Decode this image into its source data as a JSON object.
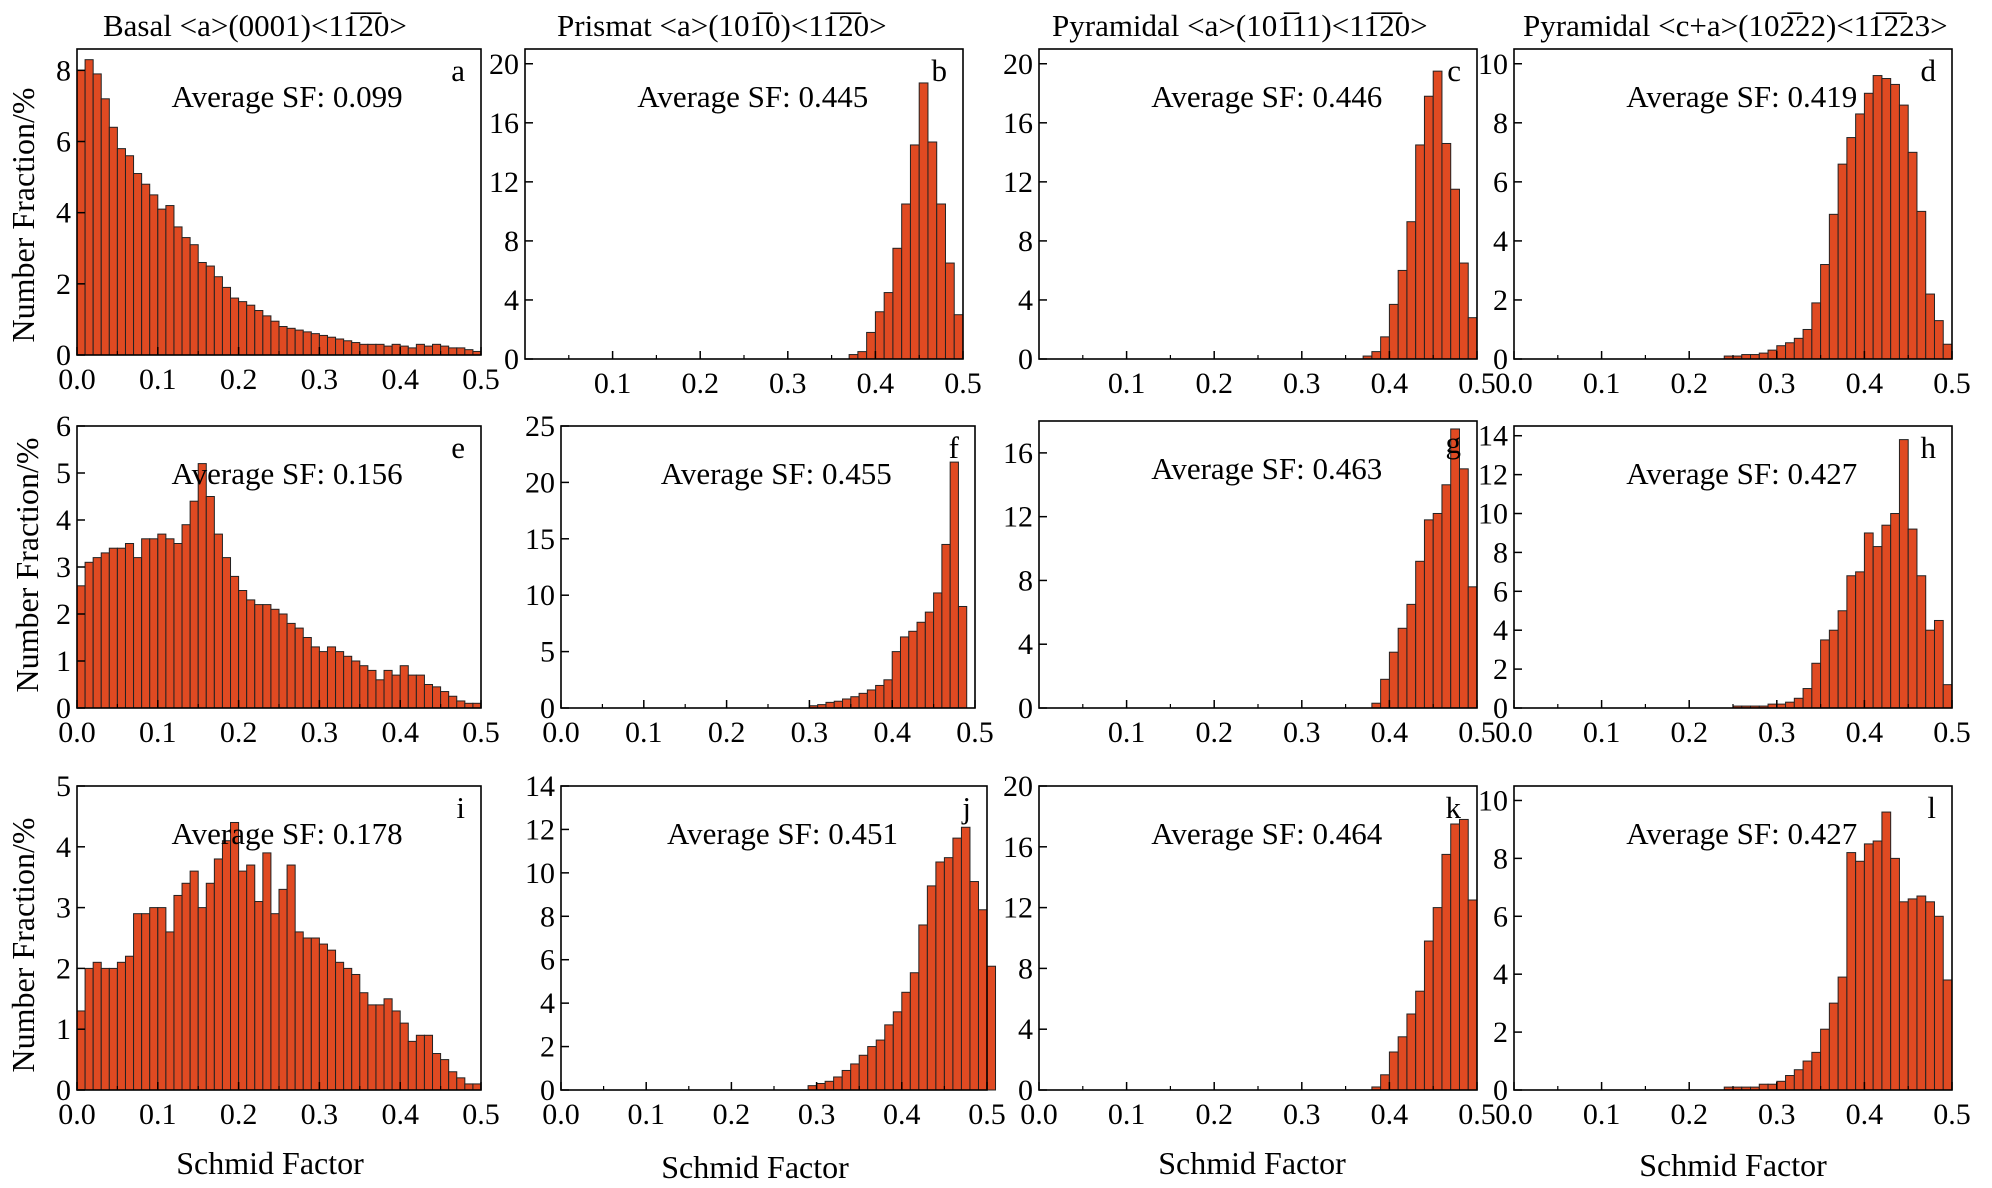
{
  "figure": {
    "column_titles": [
      "Basal <a>(0001)<11̅2̅0>",
      "Prismat <a>(101̅0)<11̅2̅0>",
      "Pyramidal <a>(101̅11)<11̅2̅0>",
      "Pyramidal <c+a>(102̅22)<11̅2̅23>"
    ],
    "y_axis_label": "Number Fraction/%",
    "x_axis_label": "Schmid Factor",
    "bar_color": "#e04a22",
    "bar_edge_color": "#222222"
  },
  "chart_data": [
    {
      "id": "a",
      "type": "bar",
      "letter": "a",
      "avg_label": "Average SF: 0.099",
      "xlim": [
        0,
        0.5
      ],
      "ylim": [
        0,
        8.6
      ],
      "yticks": [
        0,
        2,
        4,
        6,
        8
      ],
      "xticks": [
        0,
        0.1,
        0.2,
        0.3,
        0.4,
        0.5
      ],
      "bin_start": 0,
      "bin_width": 0.01,
      "values": [
        8.0,
        8.3,
        7.9,
        7.2,
        6.4,
        5.8,
        5.6,
        5.1,
        4.8,
        4.5,
        4.1,
        4.2,
        3.6,
        3.3,
        3.1,
        2.6,
        2.5,
        2.2,
        1.9,
        1.6,
        1.5,
        1.4,
        1.25,
        1.1,
        0.95,
        0.8,
        0.75,
        0.7,
        0.65,
        0.6,
        0.55,
        0.5,
        0.45,
        0.4,
        0.35,
        0.3,
        0.3,
        0.3,
        0.25,
        0.3,
        0.25,
        0.2,
        0.3,
        0.25,
        0.3,
        0.25,
        0.2,
        0.2,
        0.15,
        0.1
      ]
    },
    {
      "id": "b",
      "type": "bar",
      "letter": "b",
      "avg_label": "Average SF: 0.445",
      "xlim": [
        0,
        0.5
      ],
      "ylim": [
        0,
        21
      ],
      "yticks": [
        0,
        4,
        8,
        12,
        16,
        20
      ],
      "xticks": [
        0.1,
        0.2,
        0.3,
        0.4,
        0.5
      ],
      "bin_start": 0.37,
      "bin_width": 0.01,
      "values": [
        0.3,
        0.5,
        1.8,
        3.2,
        4.5,
        7.5,
        10.5,
        14.5,
        18.7,
        14.7,
        10.5,
        6.5,
        3.0
      ]
    },
    {
      "id": "c",
      "type": "bar",
      "letter": "c",
      "avg_label": "Average SF: 0.446",
      "xlim": [
        0,
        0.5
      ],
      "ylim": [
        0,
        21
      ],
      "yticks": [
        0,
        4,
        8,
        12,
        16,
        20
      ],
      "xticks": [
        0.1,
        0.2,
        0.3,
        0.4,
        0.5
      ],
      "bin_start": 0.37,
      "bin_width": 0.01,
      "values": [
        0.2,
        0.5,
        1.5,
        3.7,
        6.0,
        9.3,
        14.5,
        17.8,
        19.5,
        14.6,
        11.5,
        6.5,
        2.8
      ]
    },
    {
      "id": "d",
      "type": "bar",
      "letter": "d",
      "avg_label": "Average SF: 0.419",
      "xlim": [
        0,
        0.5
      ],
      "ylim": [
        0,
        10.5
      ],
      "yticks": [
        0,
        2,
        4,
        6,
        8,
        10
      ],
      "xticks": [
        0,
        0.1,
        0.2,
        0.3,
        0.4,
        0.5
      ],
      "bin_start": 0.24,
      "bin_width": 0.01,
      "values": [
        0.1,
        0.1,
        0.15,
        0.15,
        0.2,
        0.3,
        0.45,
        0.55,
        0.7,
        1.0,
        1.9,
        3.2,
        4.9,
        6.6,
        7.5,
        8.3,
        9.0,
        9.6,
        9.5,
        9.3,
        8.6,
        7.0,
        5.0,
        2.2,
        1.3,
        0.5
      ]
    },
    {
      "id": "e",
      "type": "bar",
      "letter": "e",
      "avg_label": "Average SF: 0.156",
      "xlim": [
        0,
        0.5
      ],
      "ylim": [
        0,
        6
      ],
      "yticks": [
        0,
        1,
        2,
        3,
        4,
        5,
        6
      ],
      "xticks": [
        0,
        0.1,
        0.2,
        0.3,
        0.4,
        0.5
      ],
      "bin_start": 0,
      "bin_width": 0.01,
      "values": [
        2.6,
        3.1,
        3.2,
        3.3,
        3.4,
        3.4,
        3.5,
        3.2,
        3.6,
        3.6,
        3.7,
        3.6,
        3.5,
        3.9,
        4.4,
        5.2,
        4.5,
        3.7,
        3.2,
        2.8,
        2.5,
        2.3,
        2.2,
        2.2,
        2.1,
        2.0,
        1.8,
        1.7,
        1.5,
        1.3,
        1.2,
        1.3,
        1.2,
        1.1,
        1.0,
        0.9,
        0.8,
        0.6,
        0.8,
        0.7,
        0.9,
        0.7,
        0.7,
        0.5,
        0.45,
        0.35,
        0.25,
        0.15,
        0.1,
        0.1
      ]
    },
    {
      "id": "f",
      "type": "bar",
      "letter": "f",
      "avg_label": "Average SF: 0.455",
      "xlim": [
        0,
        0.5
      ],
      "ylim": [
        0,
        25
      ],
      "yticks": [
        0,
        5,
        10,
        15,
        20,
        25
      ],
      "xticks": [
        0,
        0.1,
        0.2,
        0.3,
        0.4,
        0.5
      ],
      "bin_start": 0.3,
      "bin_width": 0.01,
      "values": [
        0.2,
        0.3,
        0.5,
        0.6,
        0.8,
        1.0,
        1.3,
        1.6,
        2.0,
        2.5,
        5.0,
        6.3,
        6.8,
        7.6,
        8.5,
        10.2,
        14.5,
        21.8,
        9.0
      ]
    },
    {
      "id": "g",
      "type": "bar",
      "letter": "g",
      "avg_label": "Average SF: 0.463",
      "xlim": [
        0,
        0.5
      ],
      "ylim": [
        0,
        18
      ],
      "yticks": [
        0,
        4,
        8,
        12,
        16
      ],
      "xticks": [
        0.1,
        0.2,
        0.3,
        0.4,
        0.5
      ],
      "bin_start": 0.38,
      "bin_width": 0.01,
      "values": [
        0.3,
        1.8,
        3.5,
        5.0,
        6.5,
        9.2,
        11.8,
        12.2,
        14.0,
        17.5,
        15.0,
        7.6
      ]
    },
    {
      "id": "h",
      "type": "bar",
      "letter": "h",
      "avg_label": "Average SF: 0.427",
      "xlim": [
        0,
        0.5
      ],
      "ylim": [
        0,
        14.5
      ],
      "yticks": [
        0,
        2,
        4,
        6,
        8,
        10,
        12,
        14
      ],
      "xticks": [
        0,
        0.1,
        0.2,
        0.3,
        0.4,
        0.5
      ],
      "bin_start": 0.25,
      "bin_width": 0.01,
      "values": [
        0.1,
        0.1,
        0.1,
        0.1,
        0.2,
        0.2,
        0.3,
        0.5,
        1.0,
        2.3,
        3.5,
        4.0,
        5.0,
        6.8,
        7.0,
        9.0,
        8.3,
        9.4,
        10.0,
        13.8,
        9.2,
        6.8,
        4.0,
        4.5,
        1.2
      ]
    },
    {
      "id": "i",
      "type": "bar",
      "letter": "i",
      "avg_label": "Average SF: 0.178",
      "xlim": [
        0,
        0.5
      ],
      "ylim": [
        0,
        5
      ],
      "yticks": [
        0,
        1,
        2,
        3,
        4,
        5
      ],
      "xticks": [
        0,
        0.1,
        0.2,
        0.3,
        0.4,
        0.5
      ],
      "bin_start": 0,
      "bin_width": 0.01,
      "values": [
        1.3,
        2.0,
        2.1,
        2.0,
        2.0,
        2.1,
        2.2,
        2.9,
        2.9,
        3.0,
        3.0,
        2.6,
        3.2,
        3.4,
        3.6,
        3.0,
        3.4,
        3.8,
        4.1,
        4.4,
        3.6,
        3.7,
        3.1,
        3.9,
        2.9,
        3.3,
        3.7,
        2.6,
        2.5,
        2.5,
        2.4,
        2.3,
        2.1,
        2.0,
        1.9,
        1.6,
        1.4,
        1.4,
        1.5,
        1.3,
        1.1,
        0.8,
        0.9,
        0.9,
        0.6,
        0.5,
        0.3,
        0.2,
        0.1,
        0.1
      ]
    },
    {
      "id": "j",
      "type": "bar",
      "letter": "j",
      "avg_label": "Average SF: 0.451",
      "xlim": [
        0,
        0.5
      ],
      "ylim": [
        0,
        14
      ],
      "yticks": [
        0,
        2,
        4,
        6,
        8,
        10,
        12,
        14
      ],
      "xticks": [
        0,
        0.1,
        0.2,
        0.3,
        0.4,
        0.5
      ],
      "bin_start": 0.29,
      "bin_width": 0.01,
      "values": [
        0.2,
        0.3,
        0.4,
        0.6,
        0.9,
        1.2,
        1.6,
        2.0,
        2.3,
        3.0,
        3.6,
        4.5,
        5.4,
        7.6,
        9.4,
        10.5,
        10.7,
        11.6,
        12.1,
        9.6,
        8.3,
        5.7
      ]
    },
    {
      "id": "k",
      "type": "bar",
      "letter": "k",
      "avg_label": "Average SF: 0.464",
      "xlim": [
        0,
        0.5
      ],
      "ylim": [
        0,
        20
      ],
      "yticks": [
        0,
        4,
        8,
        12,
        16,
        20
      ],
      "xticks": [
        0,
        0.1,
        0.2,
        0.3,
        0.4,
        0.5
      ],
      "bin_start": 0.38,
      "bin_width": 0.01,
      "values": [
        0.2,
        1.0,
        2.5,
        3.5,
        5.0,
        6.5,
        9.8,
        12.0,
        15.5,
        17.5,
        17.8,
        12.5
      ]
    },
    {
      "id": "l",
      "type": "bar",
      "letter": "l",
      "avg_label": "Average SF: 0.427",
      "xlim": [
        0,
        0.5
      ],
      "ylim": [
        0,
        10.5
      ],
      "yticks": [
        0,
        2,
        4,
        6,
        8,
        10
      ],
      "xticks": [
        0,
        0.1,
        0.2,
        0.3,
        0.4,
        0.5
      ],
      "bin_start": 0.24,
      "bin_width": 0.01,
      "values": [
        0.1,
        0.1,
        0.1,
        0.1,
        0.2,
        0.2,
        0.3,
        0.5,
        0.7,
        1.0,
        1.3,
        2.1,
        3.0,
        3.9,
        8.2,
        7.9,
        8.5,
        8.6,
        9.6,
        8.0,
        6.5,
        6.6,
        6.7,
        6.5,
        6.0,
        3.8
      ]
    }
  ]
}
